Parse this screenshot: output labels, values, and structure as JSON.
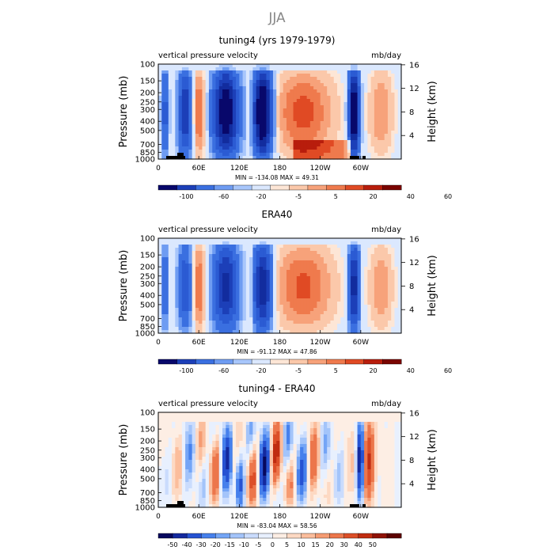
{
  "figure": {
    "title": "JJA",
    "colors": {
      "title": "#888888",
      "nodata": "#e9eef8",
      "land": "#000000"
    }
  },
  "chart_data": [
    {
      "type": "heatmap",
      "title": "tuning4 (yrs 1979-1979)",
      "subtitle_left": "vertical pressure velocity",
      "subtitle_right": "mb/day",
      "ylabel": "Pressure (mb)",
      "y2label": "Height (km)",
      "y_ticks": [
        "100",
        "150",
        "200",
        "250",
        "300",
        "400",
        "500",
        "700",
        "850",
        "1000"
      ],
      "y2_ticks": [
        "16",
        "12",
        "8",
        "4"
      ],
      "x_ticks": [
        "0",
        "60E",
        "120E",
        "180",
        "120W",
        "60W"
      ],
      "min_max_text": "MIN = -134.08   MAX =  49.31",
      "colorbar_levels": [
        "-100",
        "-60",
        "-20",
        "-5",
        "5",
        "20",
        "40",
        "60"
      ],
      "field_min": -134.08,
      "field_max": 49.31,
      "field_mode": "model"
    },
    {
      "type": "heatmap",
      "title": "ERA40",
      "subtitle_left": "vertical pressure velocity",
      "subtitle_right": "mb/day",
      "ylabel": "Pressure (mb)",
      "y2label": "Height (km)",
      "y_ticks": [
        "100",
        "150",
        "200",
        "250",
        "300",
        "400",
        "500",
        "700",
        "850",
        "1000"
      ],
      "y2_ticks": [
        "16",
        "12",
        "8",
        "4"
      ],
      "x_ticks": [
        "0",
        "60E",
        "120E",
        "180",
        "120W",
        "60W"
      ],
      "min_max_text": "MIN = -91.12   MAX =  47.86",
      "colorbar_levels": [
        "-100",
        "-60",
        "-20",
        "-5",
        "5",
        "20",
        "40",
        "60"
      ],
      "field_min": -91.12,
      "field_max": 47.86,
      "field_mode": "obs"
    },
    {
      "type": "heatmap",
      "title": "tuning4 - ERA40",
      "subtitle_left": "vertical pressure velocity",
      "subtitle_right": "mb/day",
      "ylabel": "Pressure (mb)",
      "y2label": "Height (km)",
      "y_ticks": [
        "100",
        "150",
        "200",
        "250",
        "300",
        "400",
        "500",
        "700",
        "850",
        "1000"
      ],
      "y2_ticks": [
        "16",
        "12",
        "8",
        "4"
      ],
      "x_ticks": [
        "0",
        "60E",
        "120E",
        "180",
        "120W",
        "60W"
      ],
      "min_max_text": "MIN = -83.04   MAX =  58.56",
      "colorbar_levels": [
        "-50",
        "-40",
        "-30",
        "-20",
        "-15",
        "-10",
        "-5",
        "0",
        "5",
        "10",
        "15",
        "20",
        "30",
        "40",
        "50"
      ],
      "field_min": -83.04,
      "field_max": 58.56,
      "field_mode": "diff"
    }
  ]
}
